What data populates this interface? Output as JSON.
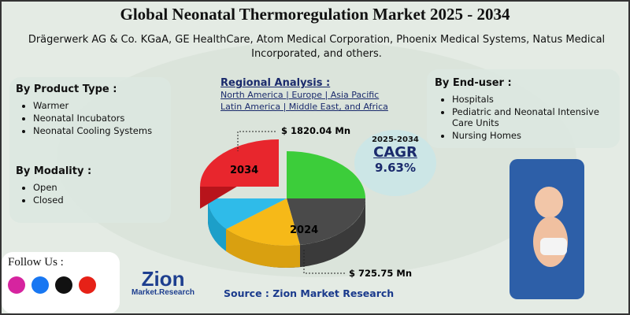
{
  "title": "Global Neonatal Thermoregulation Market 2025 - 2034",
  "companies": "Drägerwerk AG & Co. KGaA, GE HealthCare, Atom Medical Corporation, Phoenix Medical Systems, Natus Medical Incorporated, and others.",
  "product_type": {
    "heading": "By Product Type :",
    "items": [
      "Warmer",
      "Neonatal Incubators",
      "Neonatal Cooling Systems"
    ]
  },
  "modality": {
    "heading": "By Modality :",
    "items": [
      "Open",
      "Closed"
    ]
  },
  "regional": {
    "heading": "Regional Analysis :",
    "lines": [
      "North America | Europe | Asia Pacific",
      "Latin America | Middle East, and Africa"
    ]
  },
  "end_user": {
    "heading": "By End-user :",
    "items": [
      "Hospitals",
      "Pediatric and Neonatal Intensive Care Units",
      "Nursing Homes"
    ]
  },
  "market": {
    "year_high": "2034",
    "value_high": "$ 1820.04 Mn",
    "year_low": "2024",
    "value_low": "$ 725.75 Mn"
  },
  "cagr": {
    "period": "2025-2034",
    "label": "CAGR",
    "value": "9.63%"
  },
  "follow": "Follow Us :",
  "logo": {
    "name": "Zion",
    "sub": "Market.Research"
  },
  "source": "Source : Zion Market Research"
}
